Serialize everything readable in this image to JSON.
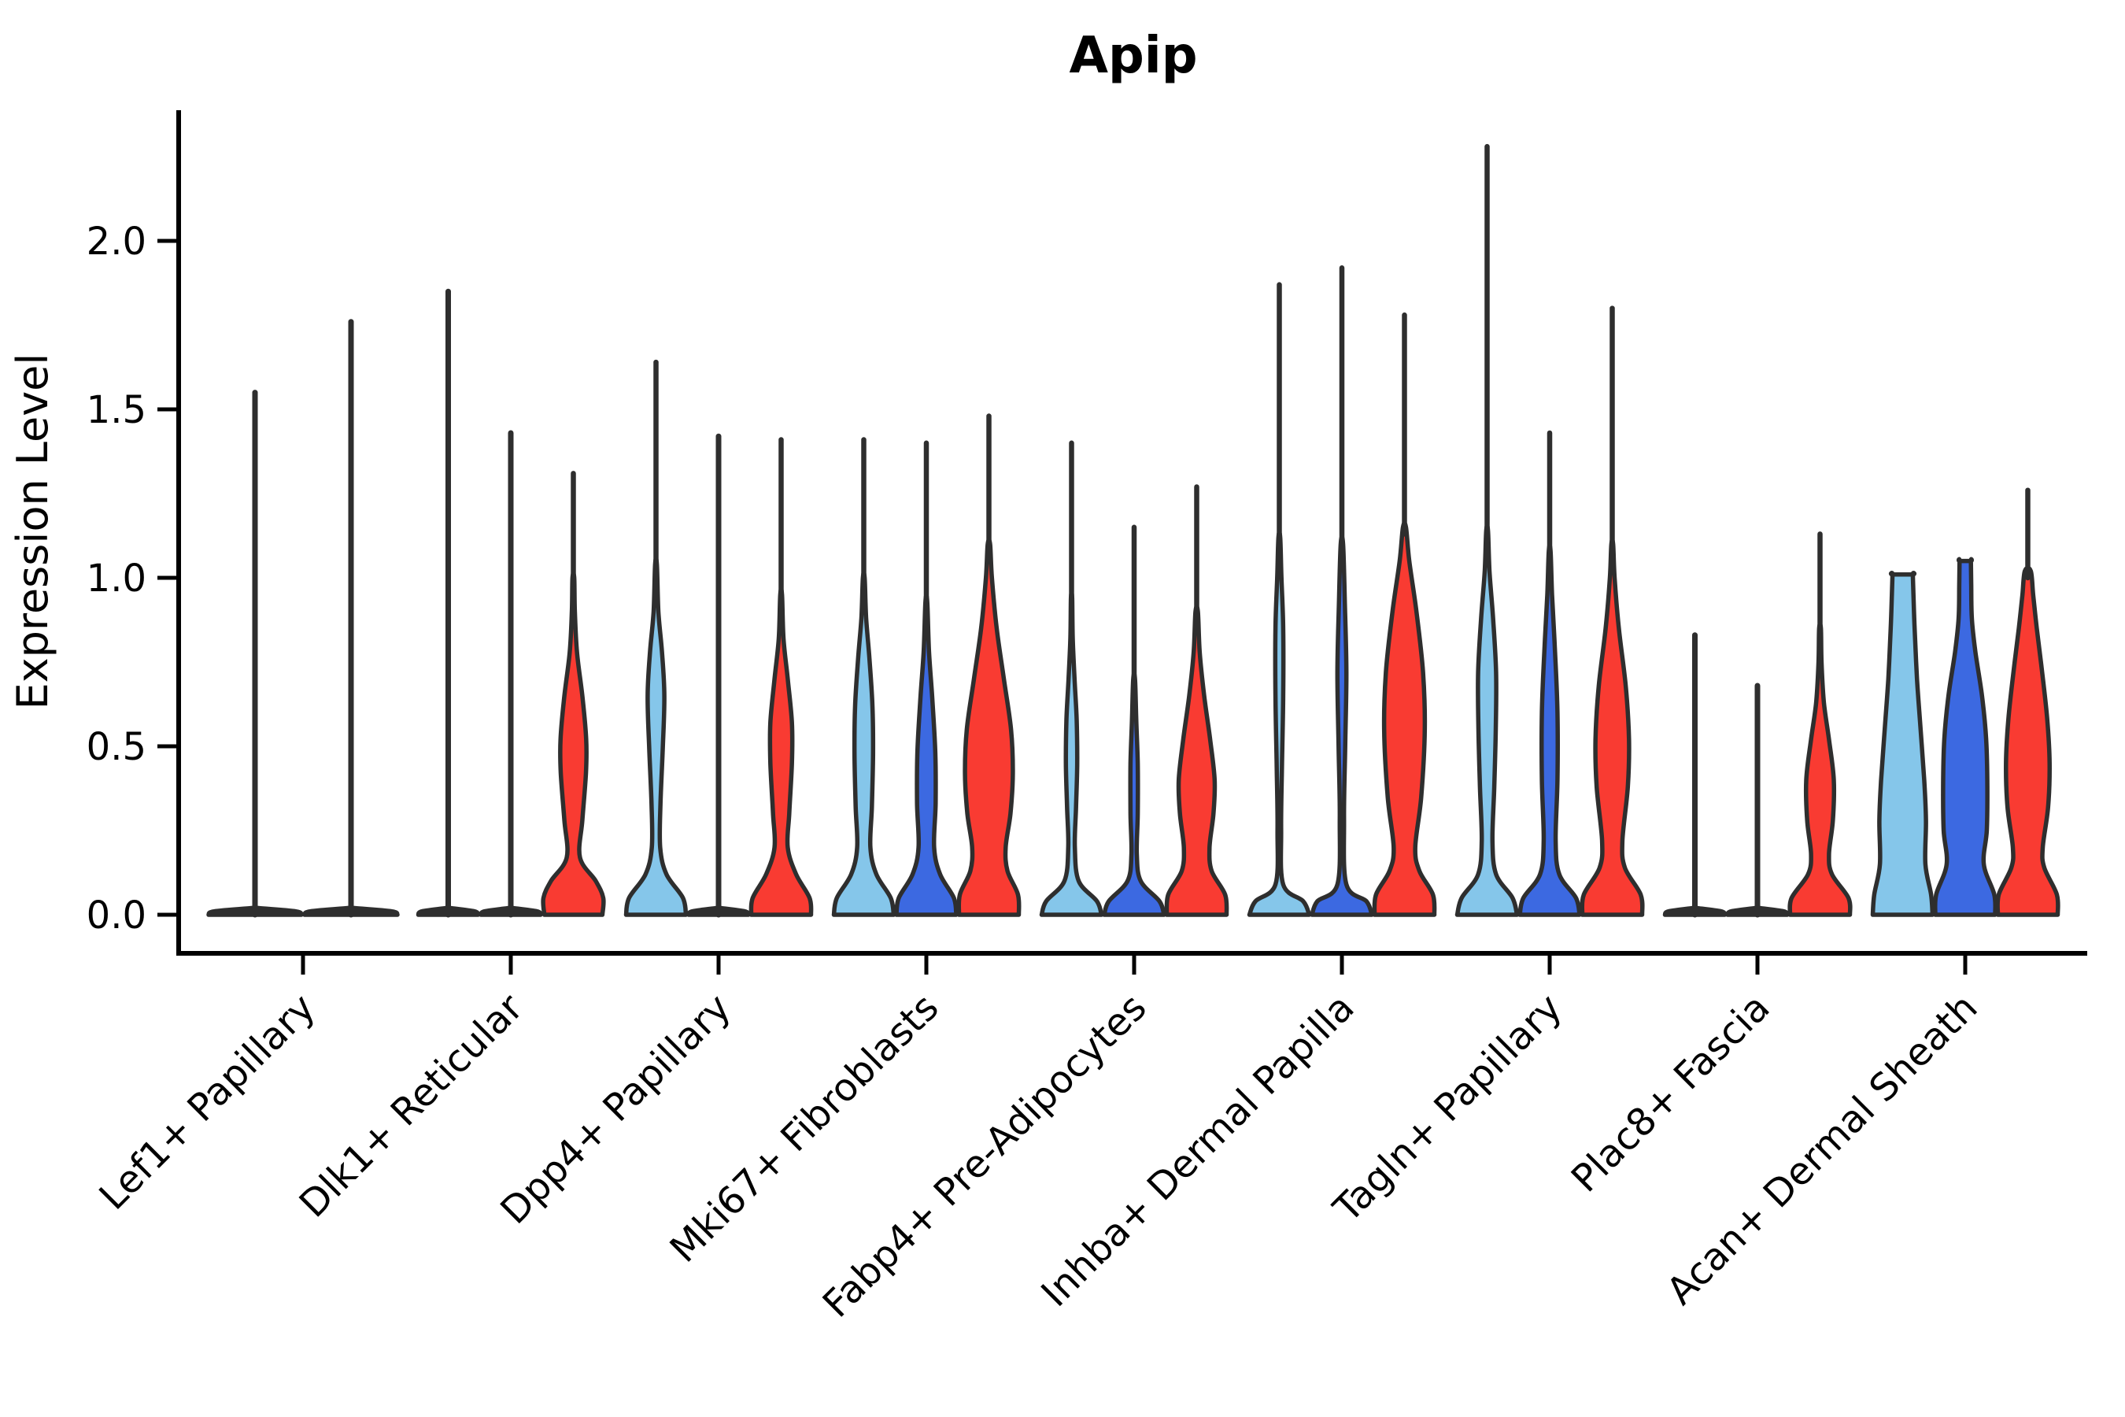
{
  "chart_data": {
    "type": "violin",
    "title": "Apip",
    "ylabel": "Expression Level",
    "xlabel": "",
    "ylim": [
      0,
      2.35
    ],
    "yticks": [
      0.0,
      0.5,
      1.0,
      1.5,
      2.0
    ],
    "ytick_labels": [
      "0.0",
      "0.5",
      "1.0",
      "1.5",
      "2.0"
    ],
    "grid": false,
    "legend_position": "none",
    "outline_color": "#2e2e2e",
    "axis_color": "#000000",
    "palette": {
      "light_blue": "#85C6EA",
      "dark_blue": "#3C69E1",
      "red": "#F93B32",
      "collapsed": "#3a3a3a"
    },
    "categories": [
      {
        "label": "Lef1+ Papillary",
        "violins": [
          {
            "color": "collapsed",
            "max": 1.55,
            "shape": "spike"
          },
          {
            "color": "collapsed",
            "max": 1.76,
            "shape": "spike"
          }
        ]
      },
      {
        "label": "Dlk1+ Reticular",
        "violins": [
          {
            "color": "collapsed",
            "max": 1.85,
            "shape": "spike"
          },
          {
            "color": "collapsed",
            "max": 1.43,
            "shape": "spike"
          },
          {
            "color": "red",
            "max": 1.31,
            "shape": "body",
            "profile": [
              [
                0,
                0.97
              ],
              [
                0.05,
                1.0
              ],
              [
                0.1,
                0.75
              ],
              [
                0.17,
                0.22
              ],
              [
                0.28,
                0.3
              ],
              [
                0.42,
                0.42
              ],
              [
                0.52,
                0.43
              ],
              [
                0.65,
                0.3
              ],
              [
                0.78,
                0.12
              ],
              [
                0.9,
                0.05
              ],
              [
                1.0,
                0.03
              ]
            ]
          }
        ]
      },
      {
        "label": "Dpp4+ Papillary",
        "violins": [
          {
            "color": "light_blue",
            "max": 1.64,
            "shape": "body",
            "profile": [
              [
                0,
                1
              ],
              [
                0.05,
                0.9
              ],
              [
                0.12,
                0.35
              ],
              [
                0.2,
                0.14
              ],
              [
                0.33,
                0.15
              ],
              [
                0.5,
                0.23
              ],
              [
                0.65,
                0.28
              ],
              [
                0.78,
                0.2
              ],
              [
                0.9,
                0.08
              ],
              [
                1.04,
                0.03
              ]
            ]
          },
          {
            "color": "collapsed",
            "max": 1.42,
            "shape": "spike"
          },
          {
            "color": "red",
            "max": 1.41,
            "shape": "body",
            "profile": [
              [
                0,
                1
              ],
              [
                0.05,
                0.95
              ],
              [
                0.12,
                0.5
              ],
              [
                0.2,
                0.22
              ],
              [
                0.3,
                0.27
              ],
              [
                0.45,
                0.36
              ],
              [
                0.57,
                0.36
              ],
              [
                0.7,
                0.22
              ],
              [
                0.82,
                0.08
              ],
              [
                0.95,
                0.03
              ]
            ]
          }
        ]
      },
      {
        "label": "Mki67+ Fibroblasts",
        "violins": [
          {
            "color": "light_blue",
            "max": 1.41,
            "shape": "body",
            "profile": [
              [
                0,
                1
              ],
              [
                0.05,
                0.9
              ],
              [
                0.12,
                0.42
              ],
              [
                0.2,
                0.22
              ],
              [
                0.32,
                0.27
              ],
              [
                0.48,
                0.31
              ],
              [
                0.62,
                0.29
              ],
              [
                0.76,
                0.19
              ],
              [
                0.88,
                0.08
              ],
              [
                1.0,
                0.03
              ]
            ]
          },
          {
            "color": "dark_blue",
            "max": 1.4,
            "shape": "body",
            "profile": [
              [
                0,
                1
              ],
              [
                0.05,
                0.92
              ],
              [
                0.12,
                0.46
              ],
              [
                0.2,
                0.26
              ],
              [
                0.33,
                0.31
              ],
              [
                0.48,
                0.3
              ],
              [
                0.64,
                0.2
              ],
              [
                0.78,
                0.09
              ],
              [
                0.93,
                0.03
              ]
            ]
          },
          {
            "color": "red",
            "max": 1.48,
            "shape": "body",
            "profile": [
              [
                0,
                1
              ],
              [
                0.06,
                0.97
              ],
              [
                0.13,
                0.62
              ],
              [
                0.2,
                0.56
              ],
              [
                0.3,
                0.72
              ],
              [
                0.42,
                0.8
              ],
              [
                0.55,
                0.74
              ],
              [
                0.7,
                0.5
              ],
              [
                0.85,
                0.26
              ],
              [
                1.0,
                0.1
              ],
              [
                1.1,
                0.04
              ]
            ]
          }
        ]
      },
      {
        "label": "Fabp4+ Pre-Adipocytes",
        "violins": [
          {
            "color": "light_blue",
            "max": 1.4,
            "shape": "body",
            "profile": [
              [
                0,
                1
              ],
              [
                0.04,
                0.85
              ],
              [
                0.1,
                0.24
              ],
              [
                0.2,
                0.11
              ],
              [
                0.32,
                0.15
              ],
              [
                0.45,
                0.19
              ],
              [
                0.58,
                0.17
              ],
              [
                0.7,
                0.1
              ],
              [
                0.82,
                0.04
              ],
              [
                0.94,
                0.02
              ]
            ]
          },
          {
            "color": "dark_blue",
            "max": 1.15,
            "shape": "body",
            "profile": [
              [
                0,
                1
              ],
              [
                0.04,
                0.85
              ],
              [
                0.1,
                0.22
              ],
              [
                0.18,
                0.09
              ],
              [
                0.3,
                0.12
              ],
              [
                0.45,
                0.12
              ],
              [
                0.58,
                0.07
              ],
              [
                0.7,
                0.03
              ]
            ]
          },
          {
            "color": "red",
            "max": 1.27,
            "shape": "body",
            "profile": [
              [
                0,
                1
              ],
              [
                0.06,
                0.95
              ],
              [
                0.13,
                0.5
              ],
              [
                0.2,
                0.43
              ],
              [
                0.3,
                0.56
              ],
              [
                0.4,
                0.6
              ],
              [
                0.52,
                0.45
              ],
              [
                0.65,
                0.25
              ],
              [
                0.78,
                0.1
              ],
              [
                0.9,
                0.04
              ]
            ]
          }
        ]
      },
      {
        "label": "Inhba+ Dermal Papilla",
        "violins": [
          {
            "color": "light_blue",
            "max": 1.87,
            "shape": "body",
            "profile": [
              [
                0,
                1
              ],
              [
                0.04,
                0.8
              ],
              [
                0.09,
                0.13
              ],
              [
                0.25,
                0.06
              ],
              [
                0.45,
                0.09
              ],
              [
                0.65,
                0.13
              ],
              [
                0.85,
                0.13
              ],
              [
                1.0,
                0.07
              ],
              [
                1.12,
                0.03
              ]
            ]
          },
          {
            "color": "dark_blue",
            "max": 1.92,
            "shape": "body",
            "profile": [
              [
                0,
                1
              ],
              [
                0.04,
                0.82
              ],
              [
                0.09,
                0.15
              ],
              [
                0.28,
                0.07
              ],
              [
                0.5,
                0.11
              ],
              [
                0.72,
                0.15
              ],
              [
                0.92,
                0.1
              ],
              [
                1.1,
                0.04
              ]
            ]
          },
          {
            "color": "red",
            "max": 1.78,
            "shape": "body",
            "profile": [
              [
                0,
                1
              ],
              [
                0.06,
                0.95
              ],
              [
                0.13,
                0.5
              ],
              [
                0.2,
                0.36
              ],
              [
                0.35,
                0.56
              ],
              [
                0.55,
                0.68
              ],
              [
                0.72,
                0.62
              ],
              [
                0.9,
                0.4
              ],
              [
                1.05,
                0.16
              ],
              [
                1.15,
                0.05
              ]
            ]
          }
        ]
      },
      {
        "label": "Tagln+ Papillary",
        "violins": [
          {
            "color": "light_blue",
            "max": 2.28,
            "shape": "body",
            "profile": [
              [
                0,
                1
              ],
              [
                0.05,
                0.85
              ],
              [
                0.12,
                0.3
              ],
              [
                0.22,
                0.18
              ],
              [
                0.38,
                0.24
              ],
              [
                0.55,
                0.29
              ],
              [
                0.72,
                0.3
              ],
              [
                0.88,
                0.2
              ],
              [
                1.02,
                0.08
              ],
              [
                1.14,
                0.03
              ]
            ]
          },
          {
            "color": "dark_blue",
            "max": 1.43,
            "shape": "body",
            "profile": [
              [
                0,
                1
              ],
              [
                0.05,
                0.88
              ],
              [
                0.12,
                0.32
              ],
              [
                0.22,
                0.2
              ],
              [
                0.4,
                0.26
              ],
              [
                0.6,
                0.26
              ],
              [
                0.78,
                0.18
              ],
              [
                0.95,
                0.08
              ],
              [
                1.08,
                0.03
              ]
            ]
          },
          {
            "color": "red",
            "max": 1.8,
            "shape": "body",
            "profile": [
              [
                0,
                1
              ],
              [
                0.06,
                0.95
              ],
              [
                0.14,
                0.42
              ],
              [
                0.22,
                0.34
              ],
              [
                0.38,
                0.52
              ],
              [
                0.52,
                0.56
              ],
              [
                0.68,
                0.45
              ],
              [
                0.85,
                0.22
              ],
              [
                1.0,
                0.08
              ],
              [
                1.1,
                0.03
              ]
            ]
          }
        ]
      },
      {
        "label": "Plac8+ Fascia",
        "violins": [
          {
            "color": "collapsed",
            "max": 0.83,
            "shape": "spike"
          },
          {
            "color": "collapsed",
            "max": 0.68,
            "shape": "spike"
          },
          {
            "color": "red",
            "max": 1.13,
            "shape": "body",
            "profile": [
              [
                0,
                1
              ],
              [
                0.05,
                0.95
              ],
              [
                0.12,
                0.4
              ],
              [
                0.18,
                0.3
              ],
              [
                0.28,
                0.43
              ],
              [
                0.4,
                0.46
              ],
              [
                0.52,
                0.3
              ],
              [
                0.63,
                0.13
              ],
              [
                0.75,
                0.05
              ],
              [
                0.85,
                0.03
              ]
            ]
          }
        ]
      },
      {
        "label": "Acan+ Dermal Sheath",
        "violins": [
          {
            "color": "light_blue",
            "max": 1.01,
            "shape": "flat_top",
            "profile": [
              [
                0,
                1
              ],
              [
                0.06,
                0.95
              ],
              [
                0.15,
                0.76
              ],
              [
                0.28,
                0.78
              ],
              [
                0.4,
                0.72
              ],
              [
                0.55,
                0.6
              ],
              [
                0.7,
                0.48
              ],
              [
                0.85,
                0.4
              ],
              [
                0.95,
                0.36
              ],
              [
                1.01,
                0.34
              ]
            ]
          },
          {
            "color": "dark_blue",
            "max": 1.05,
            "shape": "flat_top",
            "profile": [
              [
                0,
                1
              ],
              [
                0.06,
                0.97
              ],
              [
                0.15,
                0.62
              ],
              [
                0.25,
                0.72
              ],
              [
                0.38,
                0.74
              ],
              [
                0.52,
                0.7
              ],
              [
                0.65,
                0.56
              ],
              [
                0.78,
                0.34
              ],
              [
                0.88,
                0.22
              ],
              [
                0.98,
                0.2
              ],
              [
                1.05,
                0.19
              ]
            ]
          },
          {
            "color": "red",
            "max": 1.26,
            "shape": "body",
            "profile": [
              [
                0,
                1
              ],
              [
                0.06,
                0.97
              ],
              [
                0.14,
                0.55
              ],
              [
                0.2,
                0.5
              ],
              [
                0.32,
                0.68
              ],
              [
                0.45,
                0.73
              ],
              [
                0.58,
                0.65
              ],
              [
                0.72,
                0.48
              ],
              [
                0.85,
                0.3
              ],
              [
                0.95,
                0.18
              ],
              [
                1.02,
                0.1
              ]
            ]
          }
        ]
      }
    ]
  }
}
